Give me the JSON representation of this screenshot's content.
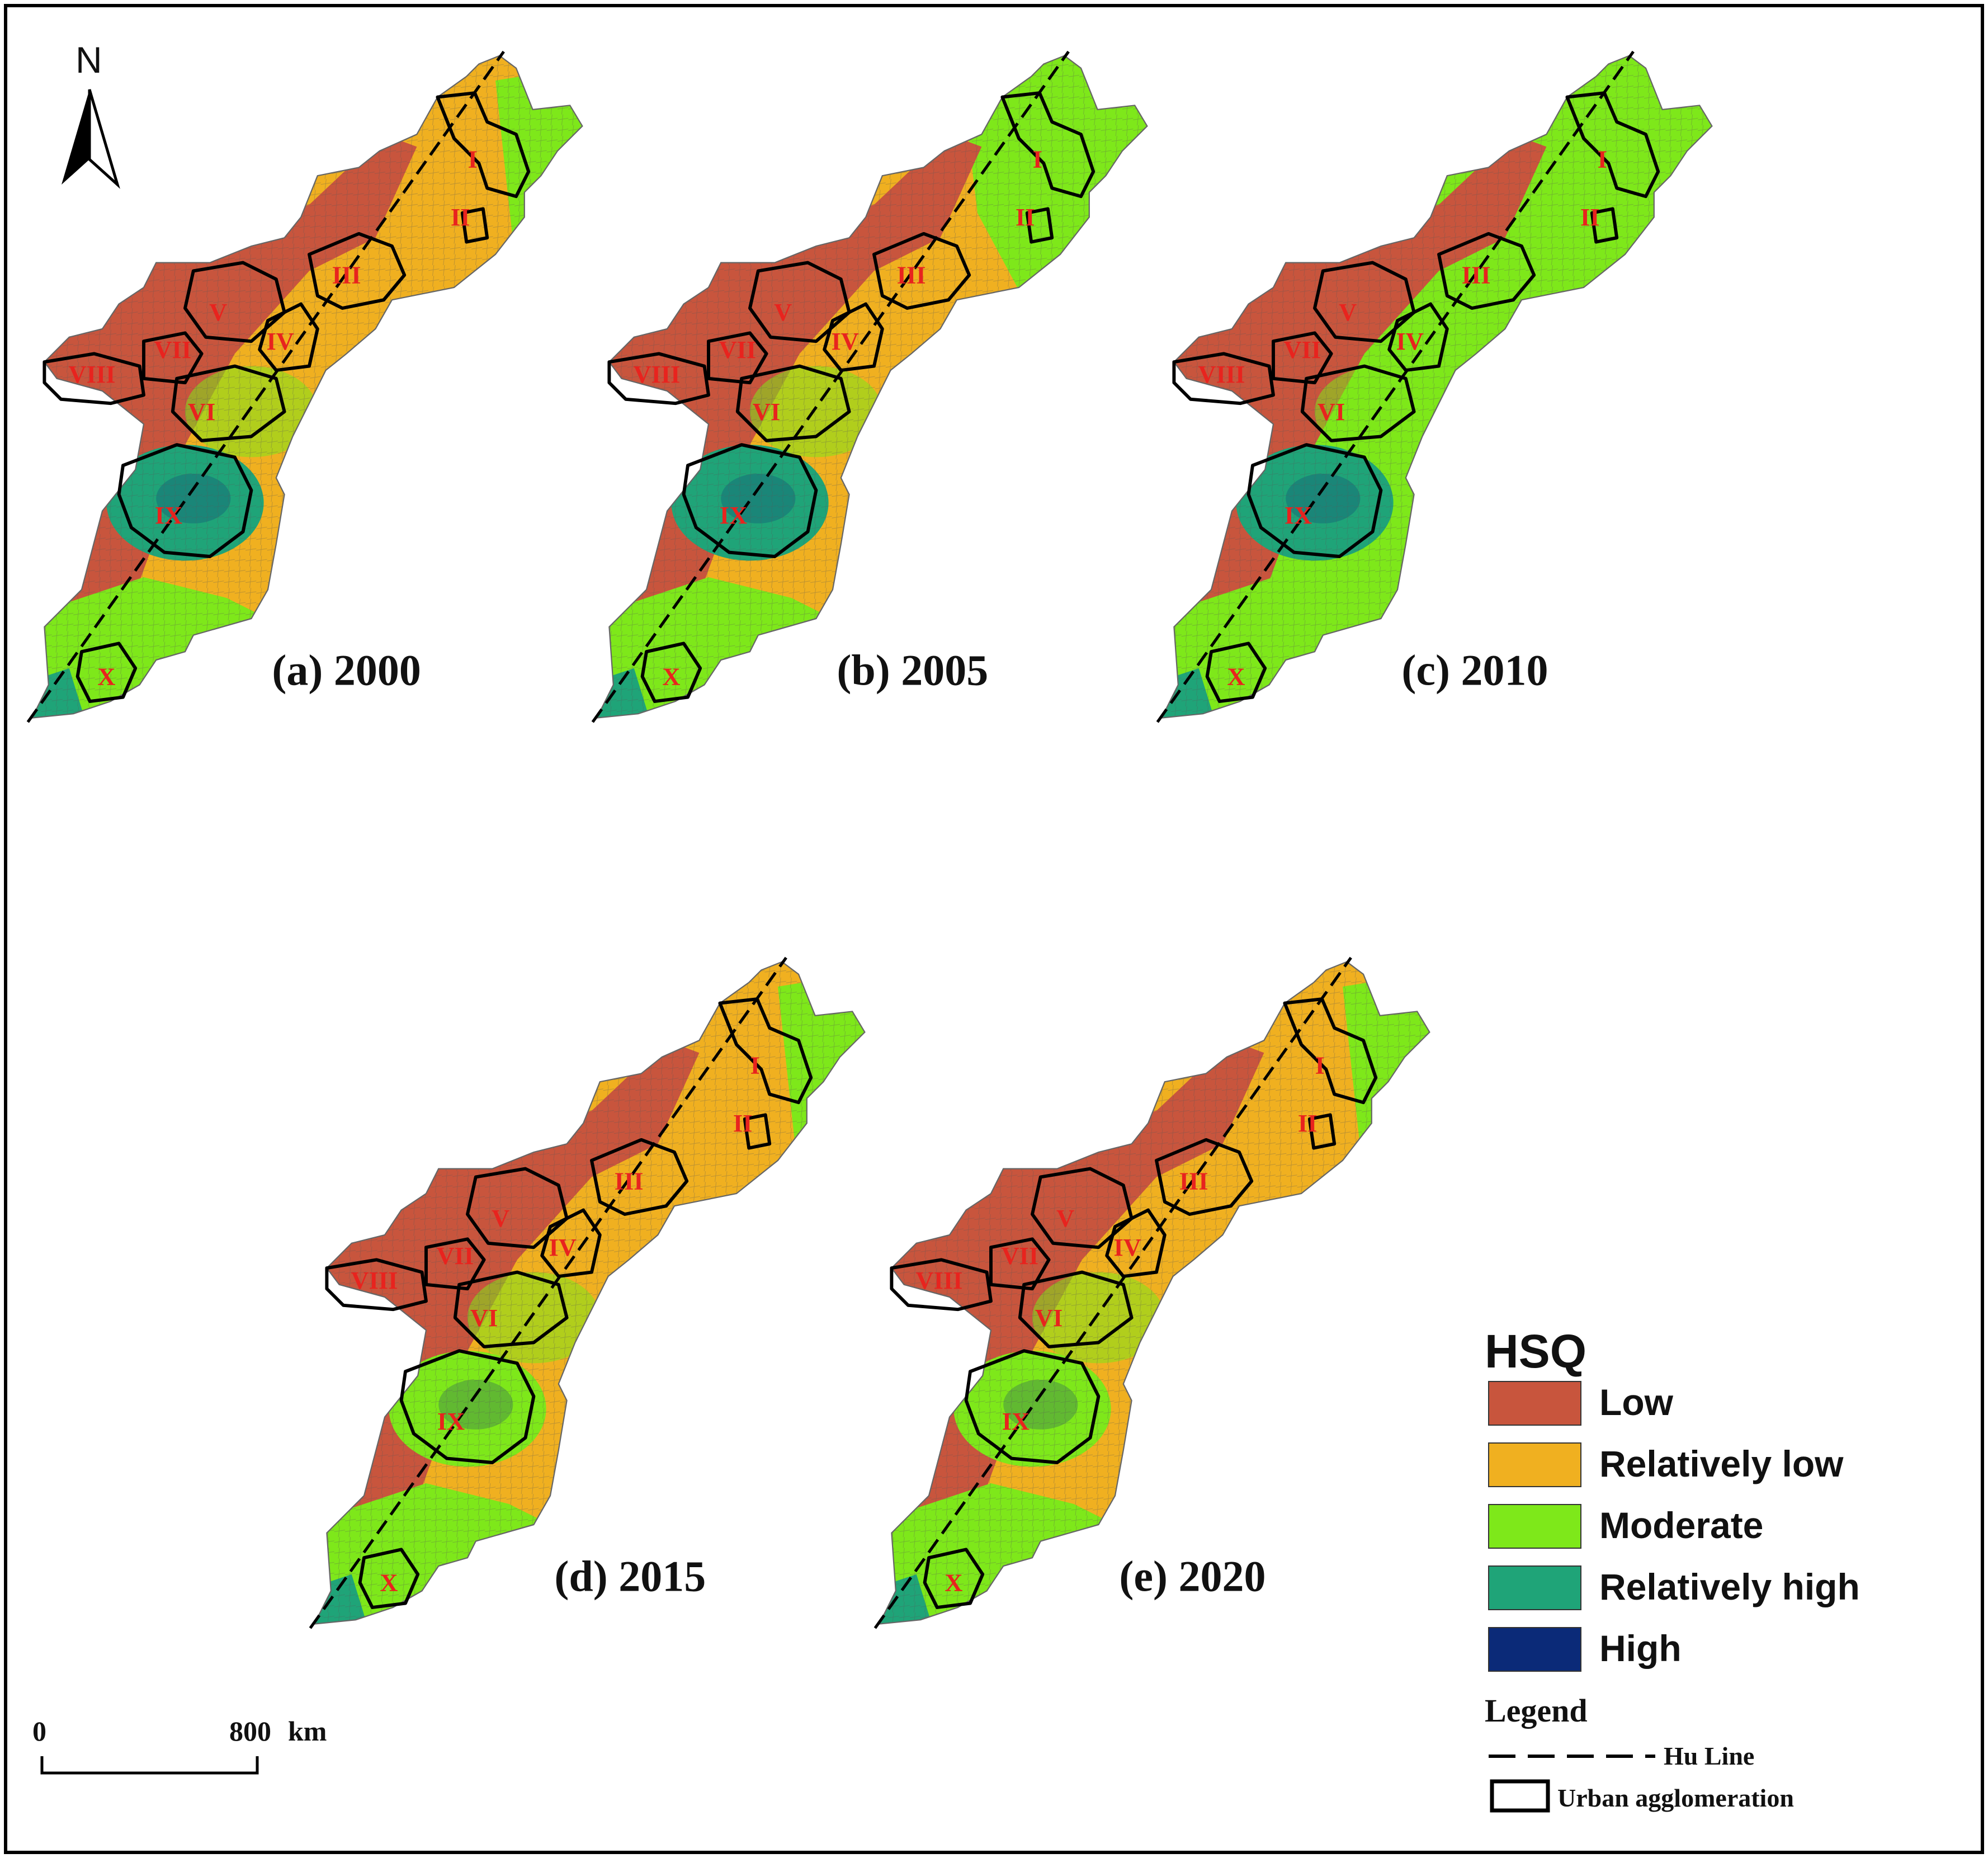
{
  "north_arrow": {
    "label": "N"
  },
  "scale_bar": {
    "start": "0",
    "end": "800",
    "unit": "km"
  },
  "panels": [
    {
      "label": "(a) 2000"
    },
    {
      "label": "(b) 2005"
    },
    {
      "label": "(c) 2010"
    },
    {
      "label": "(d) 2015"
    },
    {
      "label": "(e) 2020"
    }
  ],
  "regions": [
    "I",
    "II",
    "III",
    "IV",
    "V",
    "VI",
    "VII",
    "VIII",
    "IX",
    "X"
  ],
  "legend": {
    "title": "HSQ",
    "classes": [
      {
        "label": "Low",
        "color": "#c8553d"
      },
      {
        "label": "Relatively low",
        "color": "#f0b020"
      },
      {
        "label": "Moderate",
        "color": "#7ee81a"
      },
      {
        "label": "Relatively high",
        "color": "#1fa478"
      },
      {
        "label": "High",
        "color": "#0b2a78"
      }
    ],
    "subtitle": "Legend",
    "hu_line": "Hu Line",
    "urban": "Urban agglomeration"
  }
}
